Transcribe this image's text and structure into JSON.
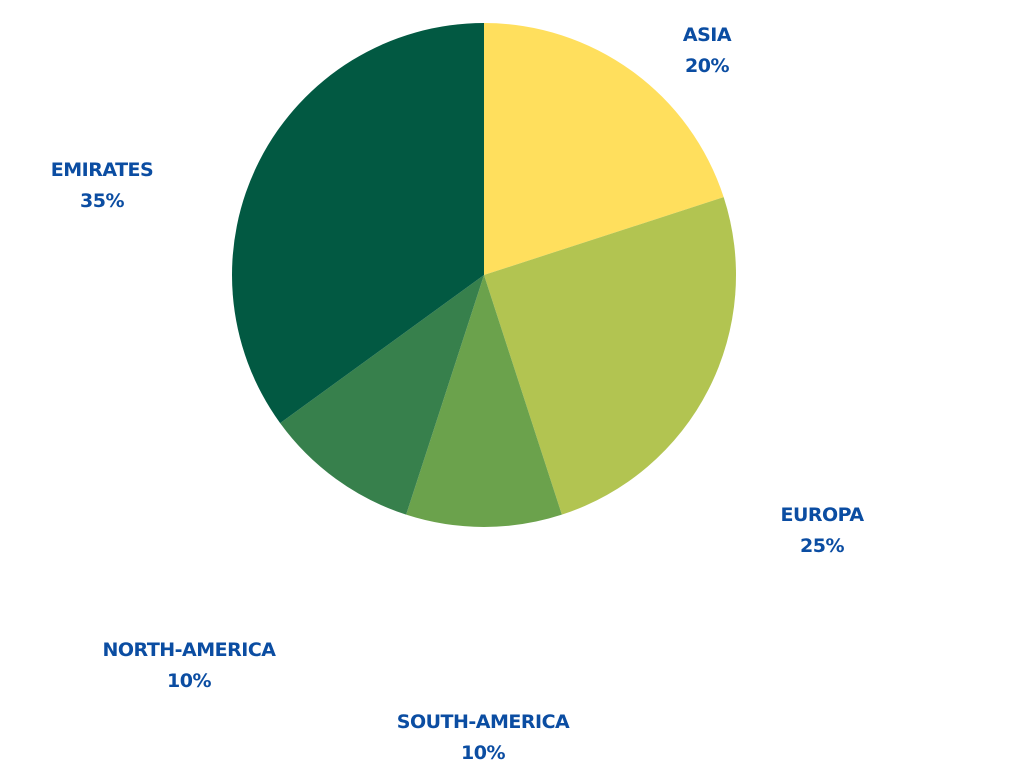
{
  "chart_data": {
    "type": "pie",
    "title": "",
    "slices": [
      {
        "label": "ASIA",
        "value": 20,
        "value_label": "20%",
        "color": "#FFDF5D"
      },
      {
        "label": "EUROPA",
        "value": 25,
        "value_label": "25%",
        "color": "#B2C451"
      },
      {
        "label": "SOUTH-AMERICA",
        "value": 10,
        "value_label": "10%",
        "color": "#6BA24C"
      },
      {
        "label": "NORTH-AMERICA",
        "value": 10,
        "value_label": "10%",
        "color": "#37804C"
      },
      {
        "label": "EMIRATES",
        "value": 35,
        "value_label": "35%",
        "color": "#025942"
      }
    ],
    "label_color": "#0B4DA2",
    "start_angle": "12 o'clock",
    "direction": "clockwise",
    "legend": "none"
  }
}
